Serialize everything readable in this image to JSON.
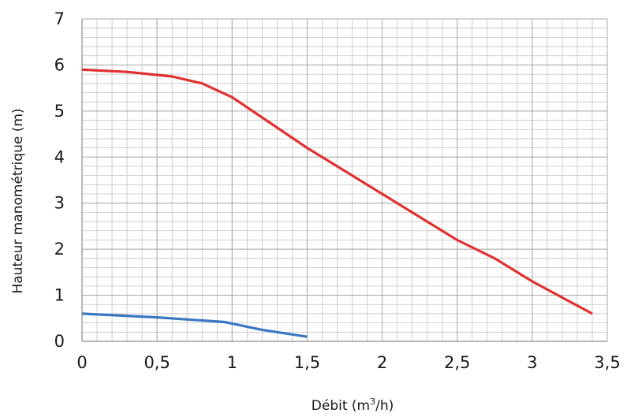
{
  "chart_data": {
    "type": "line",
    "title": "",
    "xlabel_main": "Débit (m",
    "xlabel_sup": "3",
    "xlabel_end": "/h)",
    "ylabel": "Hauteur manométrique (m)",
    "xlim": [
      0,
      3.5
    ],
    "ylim": [
      0,
      7
    ],
    "grid": true,
    "x_ticks": [
      "0",
      "0,5",
      "1",
      "1,5",
      "2",
      "2,5",
      "3",
      "3,5"
    ],
    "y_ticks": [
      "0",
      "1",
      "2",
      "3",
      "4",
      "5",
      "6",
      "7"
    ],
    "x_tick_values": [
      0,
      0.5,
      1,
      1.5,
      2,
      2.5,
      3,
      3.5
    ],
    "y_tick_values": [
      0,
      1,
      2,
      3,
      4,
      5,
      6,
      7
    ],
    "minor_x_step": 0.1,
    "minor_y_step": 0.2,
    "series": [
      {
        "name": "red-curve",
        "color": "#e03131",
        "points": [
          [
            0,
            5.9
          ],
          [
            0.3,
            5.85
          ],
          [
            0.6,
            5.75
          ],
          [
            0.8,
            5.6
          ],
          [
            1.0,
            5.3
          ],
          [
            1.25,
            4.75
          ],
          [
            1.5,
            4.2
          ],
          [
            1.75,
            3.7
          ],
          [
            2.0,
            3.2
          ],
          [
            2.25,
            2.7
          ],
          [
            2.5,
            2.2
          ],
          [
            2.75,
            1.8
          ],
          [
            3.0,
            1.3
          ],
          [
            3.2,
            0.95
          ],
          [
            3.4,
            0.6
          ]
        ]
      },
      {
        "name": "blue-curve",
        "color": "#3a78c2",
        "points": [
          [
            0,
            0.6
          ],
          [
            0.5,
            0.52
          ],
          [
            0.95,
            0.42
          ],
          [
            1.2,
            0.25
          ],
          [
            1.5,
            0.1
          ]
        ]
      }
    ]
  },
  "colors": {
    "grid": "#c4c4c4",
    "axis": "#8c8c8c"
  }
}
